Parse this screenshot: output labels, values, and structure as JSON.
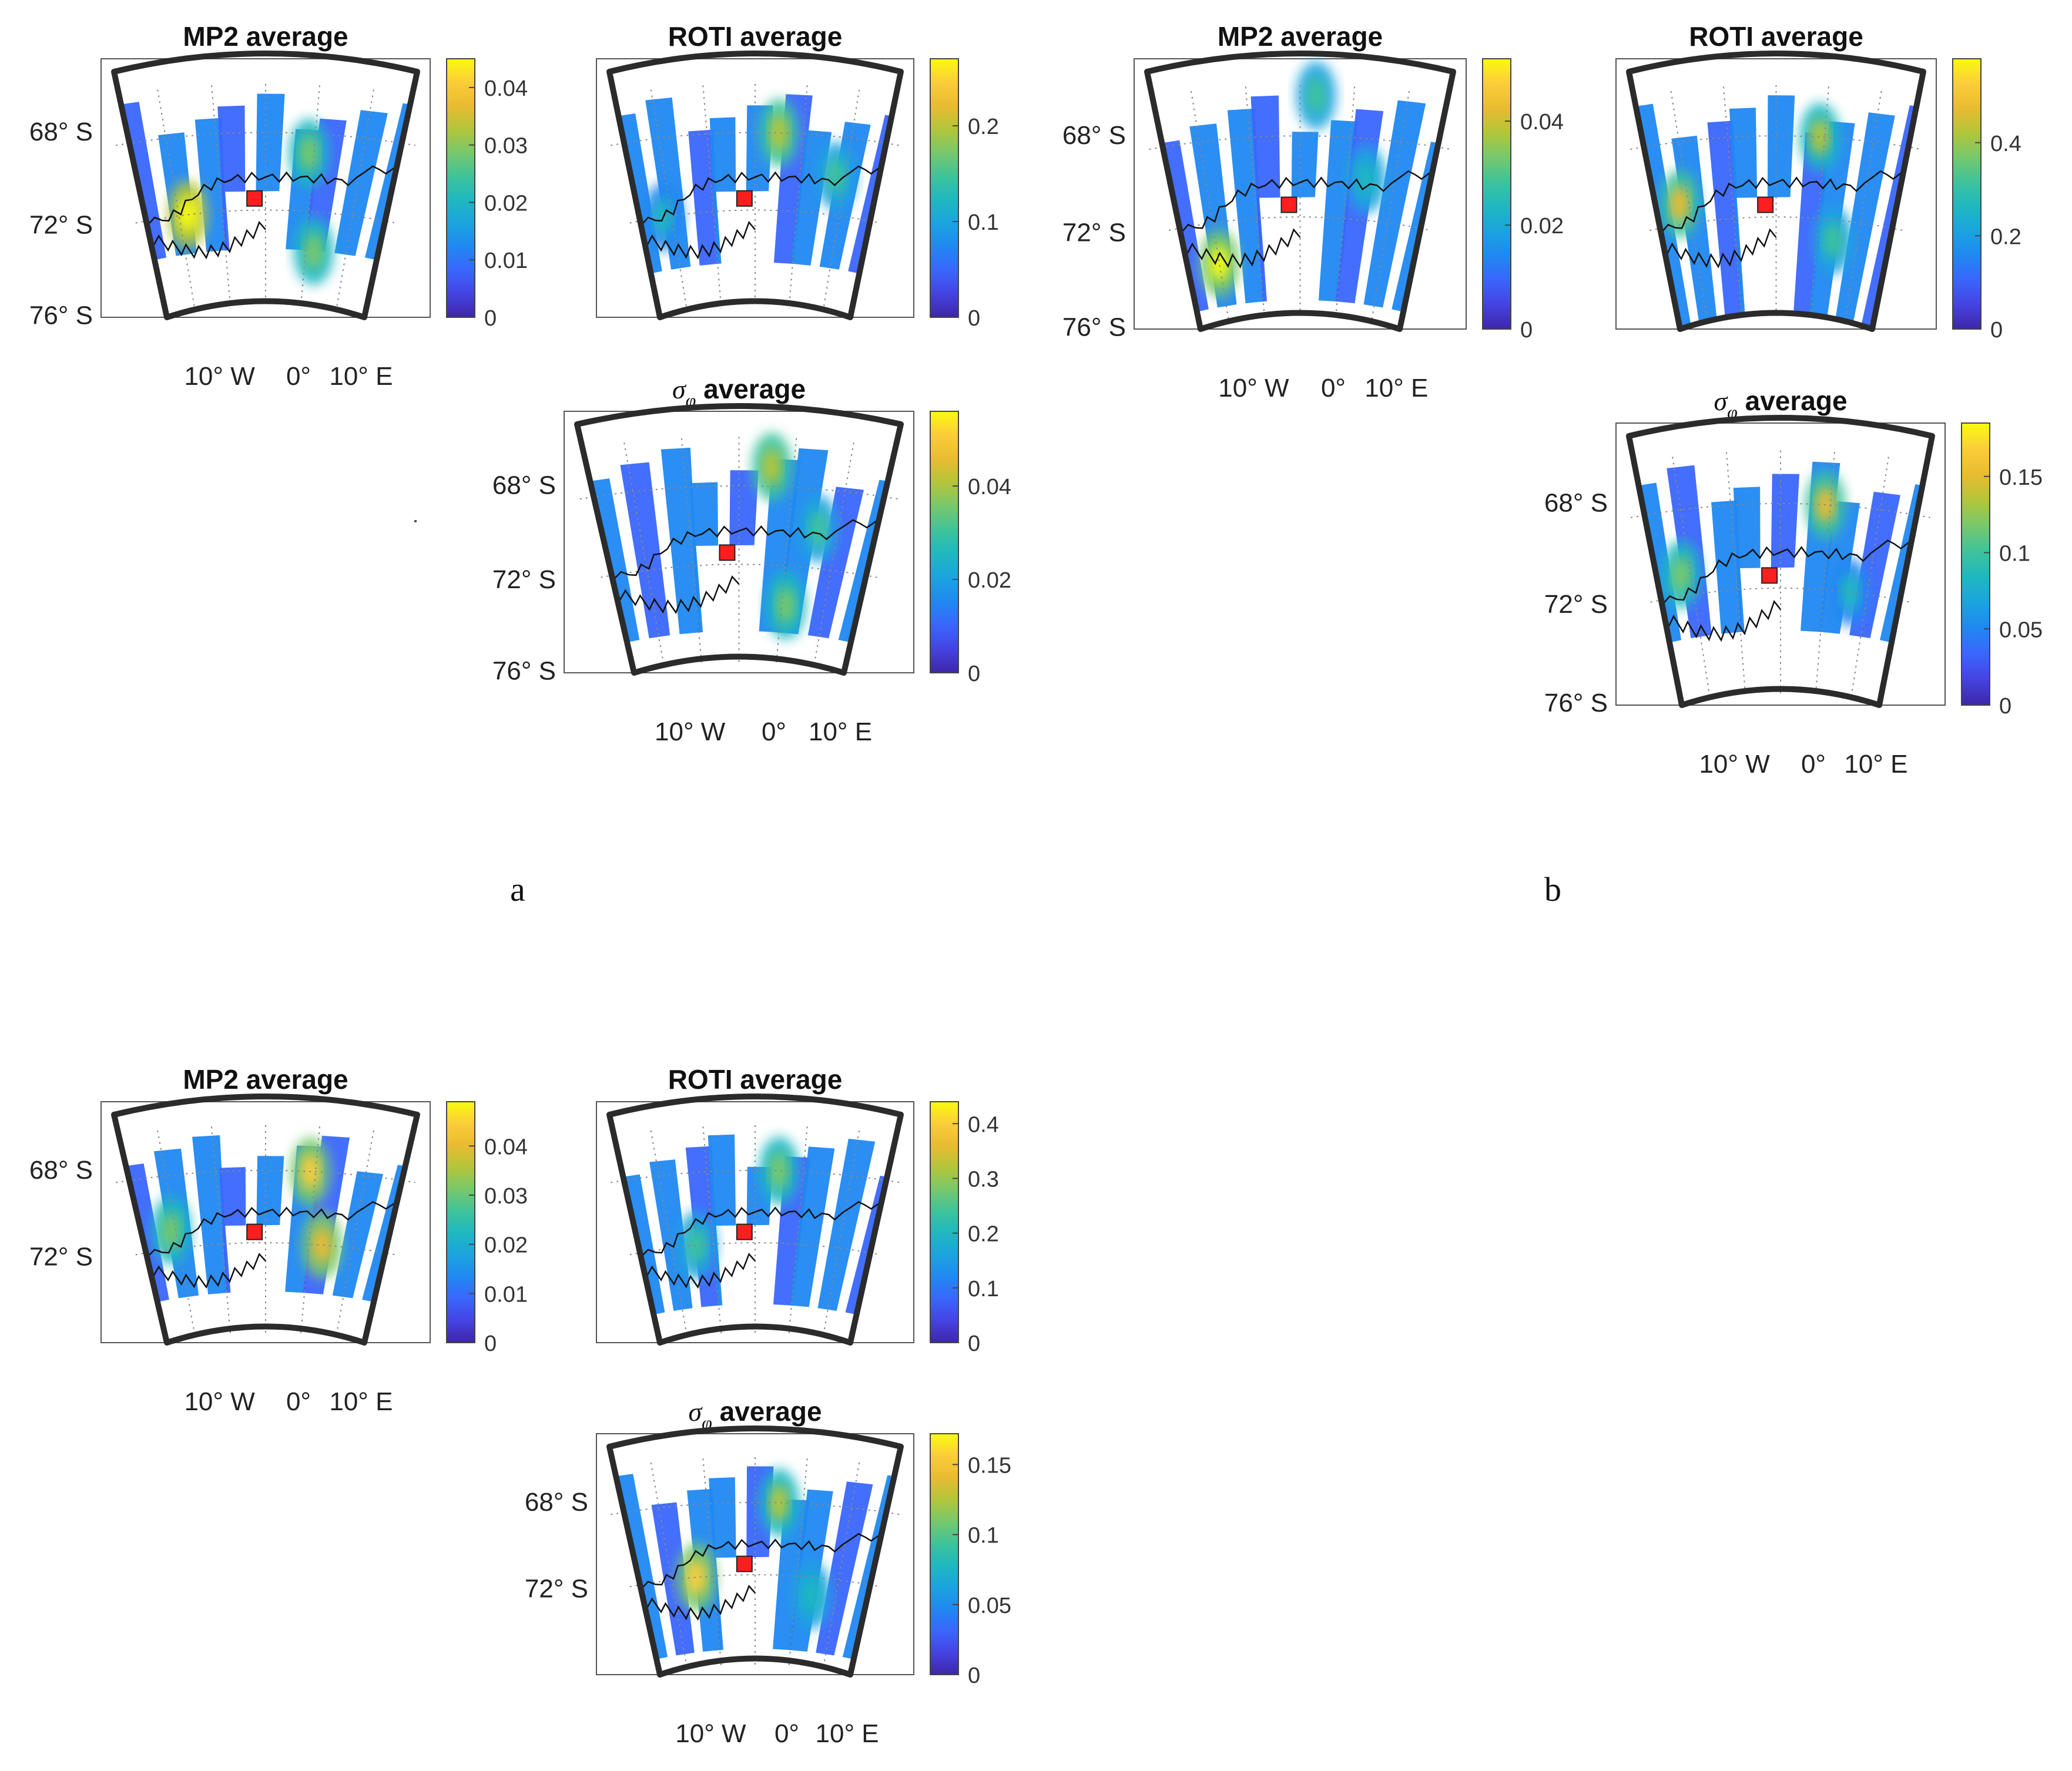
{
  "figure": {
    "panel_labels": [
      "a",
      "b"
    ],
    "colormap": [
      "#3e26a8",
      "#4543e1",
      "#3a66fd",
      "#2088f1",
      "#1ba4de",
      "#1fb8c0",
      "#3ec39b",
      "#77c86c",
      "#b3c53a",
      "#e9bb31",
      "#fbcd3a",
      "#f9fb0e"
    ],
    "station_color": "#ff1e1e",
    "frame_color": "#2b2b2b"
  },
  "chart_data": [
    {
      "id": "a-mp2",
      "group": "a",
      "type": "heatmap",
      "title": "MP2 average",
      "lat_labels": [
        "68° S",
        "72° S",
        "76° S"
      ],
      "lon_labels": [
        "10° W",
        "0°",
        "10° E"
      ],
      "colorbar": {
        "ticks": [
          "0",
          "0.01",
          "0.02",
          "0.03",
          "0.04"
        ],
        "tick_values": [
          0,
          0.01,
          0.02,
          0.03,
          0.04
        ],
        "max": 0.045
      },
      "hotspots": [
        {
          "lon": -18,
          "lat": -72,
          "value": 0.045
        },
        {
          "lon": 9,
          "lat": -69,
          "value": 0.03
        },
        {
          "lon": 12,
          "lat": -74,
          "value": 0.028
        }
      ]
    },
    {
      "id": "a-roti",
      "group": "a",
      "type": "heatmap",
      "title": "ROTI average",
      "lat_labels": [],
      "lon_labels": [],
      "colorbar": {
        "ticks": [
          "0",
          "0.1",
          "0.2"
        ],
        "tick_values": [
          0,
          0.1,
          0.2
        ],
        "max": 0.27
      },
      "hotspots": [
        {
          "lon": 5,
          "lat": -68,
          "value": 0.2
        },
        {
          "lon": 18,
          "lat": -70,
          "value": 0.15
        },
        {
          "lon": -22,
          "lat": -72,
          "value": 0.12
        }
      ]
    },
    {
      "id": "a-sigma",
      "group": "a",
      "type": "heatmap",
      "title": "σ_φ average",
      "lat_labels": [
        "68° S",
        "72° S",
        "76° S"
      ],
      "lon_labels": [
        "10° W",
        "0°",
        "10° E"
      ],
      "colorbar": {
        "ticks": [
          "0",
          "0.02",
          "0.04"
        ],
        "tick_values": [
          0,
          0.02,
          0.04
        ],
        "max": 0.056
      },
      "hotspots": [
        {
          "lon": 6,
          "lat": -67,
          "value": 0.04
        },
        {
          "lon": 11,
          "lat": -74,
          "value": 0.035
        },
        {
          "lon": 16,
          "lat": -70,
          "value": 0.03
        }
      ]
    },
    {
      "id": "b-mp2",
      "group": "b",
      "type": "heatmap",
      "title": "MP2 average",
      "lat_labels": [
        "68° S",
        "72° S",
        "76° S"
      ],
      "lon_labels": [
        "10° W",
        "0°",
        "10° E"
      ],
      "colorbar": {
        "ticks": [
          "0",
          "0.02",
          "0.04"
        ],
        "tick_values": [
          0,
          0.02,
          0.04
        ],
        "max": 0.052
      },
      "hotspots": [
        {
          "lon": -20,
          "lat": -74,
          "value": 0.05
        },
        {
          "lon": 3,
          "lat": -66,
          "value": 0.03
        },
        {
          "lon": 14,
          "lat": -70,
          "value": 0.025
        }
      ]
    },
    {
      "id": "b-roti",
      "group": "b",
      "type": "heatmap",
      "title": "ROTI average",
      "lat_labels": [],
      "lon_labels": [],
      "colorbar": {
        "ticks": [
          "0",
          "0.2",
          "0.4"
        ],
        "tick_values": [
          0,
          0.2,
          0.4
        ],
        "max": 0.58
      },
      "hotspots": [
        {
          "lon": -22,
          "lat": -71,
          "value": 0.45
        },
        {
          "lon": 9,
          "lat": -68,
          "value": 0.4
        },
        {
          "lon": 14,
          "lat": -73,
          "value": 0.3
        }
      ]
    },
    {
      "id": "b-sigma",
      "group": "b",
      "type": "heatmap",
      "title": "σ_φ average",
      "lat_labels": [
        "68° S",
        "72° S",
        "76° S"
      ],
      "lon_labels": [
        "10° W",
        "0°",
        "10° E"
      ],
      "colorbar": {
        "ticks": [
          "0",
          "0.05",
          "0.1",
          "0.15"
        ],
        "tick_values": [
          0,
          0.05,
          0.1,
          0.15
        ],
        "max": 0.185
      },
      "hotspots": [
        {
          "lon": 9,
          "lat": -68,
          "value": 0.15
        },
        {
          "lon": -22,
          "lat": -71,
          "value": 0.12
        },
        {
          "lon": 16,
          "lat": -72,
          "value": 0.08
        }
      ]
    },
    {
      "id": "c-mp2",
      "group": "c",
      "type": "heatmap",
      "title": "MP2 average",
      "lat_labels": [
        "68° S",
        "72° S"
      ],
      "lon_labels": [
        "10° W",
        "0°",
        "10° E"
      ],
      "colorbar": {
        "ticks": [
          "0",
          "0.01",
          "0.02",
          "0.03",
          "0.04"
        ],
        "tick_values": [
          0,
          0.01,
          0.02,
          0.03,
          0.04
        ],
        "max": 0.049
      },
      "hotspots": [
        {
          "lon": 9,
          "lat": -68,
          "value": 0.045
        },
        {
          "lon": 13,
          "lat": -72,
          "value": 0.042
        },
        {
          "lon": -21,
          "lat": -71,
          "value": 0.03
        }
      ]
    },
    {
      "id": "c-roti",
      "group": "c",
      "type": "heatmap",
      "title": "ROTI average",
      "lat_labels": [],
      "lon_labels": [],
      "colorbar": {
        "ticks": [
          "0",
          "0.1",
          "0.2",
          "0.3",
          "0.4"
        ],
        "tick_values": [
          0,
          0.1,
          0.2,
          0.3,
          0.4
        ],
        "max": 0.44
      },
      "hotspots": [
        {
          "lon": 5,
          "lat": -68,
          "value": 0.3
        },
        {
          "lon": -14,
          "lat": -72,
          "value": 0.25
        }
      ]
    },
    {
      "id": "c-sigma",
      "group": "c",
      "type": "heatmap",
      "title": "σ_φ average",
      "lat_labels": [
        "68° S",
        "72° S"
      ],
      "lon_labels": [
        "10° W",
        "0°",
        "10° E"
      ],
      "colorbar": {
        "ticks": [
          "0",
          "0.05",
          "0.1",
          "0.15"
        ],
        "tick_values": [
          0,
          0.05,
          0.1,
          0.15
        ],
        "max": 0.172
      },
      "hotspots": [
        {
          "lon": -14,
          "lat": -72,
          "value": 0.15
        },
        {
          "lon": 5,
          "lat": -68,
          "value": 0.12
        },
        {
          "lon": 14,
          "lat": -73,
          "value": 0.08
        }
      ]
    }
  ]
}
